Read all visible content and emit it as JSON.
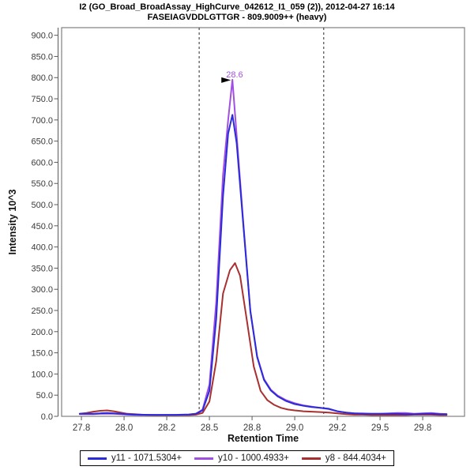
{
  "chart_data": {
    "type": "line",
    "title": "I2 (GO_Broad_BroadAssay_HighCurve_042612_I1_059 (2)), 2012-04-27 16:14",
    "subtitle": "FASEIAGVDDLGTTGR - 809.9009++ (heavy)",
    "xlabel": "Retention Time",
    "ylabel": "Intensity 10^3",
    "xlim": [
      27.634,
      29.995
    ],
    "ylim": [
      0,
      918
    ],
    "grid": false,
    "legend_position": "bottom",
    "x_ticks": [
      {
        "value": 27.75,
        "label": "27.8"
      },
      {
        "value": 28.0,
        "label": "28.0"
      },
      {
        "value": 28.25,
        "label": "28.2"
      },
      {
        "value": 28.5,
        "label": "28.5"
      },
      {
        "value": 28.75,
        "label": "28.8"
      },
      {
        "value": 29.0,
        "label": "29.0"
      },
      {
        "value": 29.25,
        "label": "29.2"
      },
      {
        "value": 29.5,
        "label": "29.5"
      },
      {
        "value": 29.75,
        "label": "29.8"
      }
    ],
    "y_ticks": [
      {
        "value": 0,
        "label": "0.0"
      },
      {
        "value": 50,
        "label": "50.0"
      },
      {
        "value": 100,
        "label": "100.0"
      },
      {
        "value": 150,
        "label": "150.0"
      },
      {
        "value": 200,
        "label": "200.0"
      },
      {
        "value": 250,
        "label": "250.0"
      },
      {
        "value": 300,
        "label": "300.0"
      },
      {
        "value": 350,
        "label": "350.0"
      },
      {
        "value": 400,
        "label": "400.0"
      },
      {
        "value": 450,
        "label": "450.0"
      },
      {
        "value": 500,
        "label": "500.0"
      },
      {
        "value": 550,
        "label": "550.0"
      },
      {
        "value": 600,
        "label": "600.0"
      },
      {
        "value": 650,
        "label": "650.0"
      },
      {
        "value": 700,
        "label": "700.0"
      },
      {
        "value": 750,
        "label": "750.0"
      },
      {
        "value": 800,
        "label": "800.0"
      },
      {
        "value": 850,
        "label": "850.0"
      },
      {
        "value": 900,
        "label": "900.0"
      }
    ],
    "integration_boundaries": [
      28.44,
      29.17
    ],
    "boundary_style": "dashed",
    "peak_annotation": {
      "text": "28.6",
      "rt": 28.635,
      "intensity": 795
    },
    "series": [
      {
        "name": "y11 - 1071.5304+",
        "color": "#2b2bd9",
        "points": [
          [
            27.74,
            6
          ],
          [
            27.78,
            6
          ],
          [
            27.82,
            6
          ],
          [
            27.86,
            7
          ],
          [
            27.9,
            8
          ],
          [
            27.94,
            7
          ],
          [
            27.98,
            6
          ],
          [
            28.02,
            5
          ],
          [
            28.06,
            4
          ],
          [
            28.1,
            4
          ],
          [
            28.14,
            3.5
          ],
          [
            28.18,
            3.5
          ],
          [
            28.22,
            3.5
          ],
          [
            28.26,
            3.5
          ],
          [
            28.3,
            3.5
          ],
          [
            28.34,
            4
          ],
          [
            28.38,
            4.5
          ],
          [
            28.42,
            6
          ],
          [
            28.46,
            14
          ],
          [
            28.5,
            60
          ],
          [
            28.54,
            230
          ],
          [
            28.58,
            520
          ],
          [
            28.61,
            668
          ],
          [
            28.635,
            712
          ],
          [
            28.66,
            645
          ],
          [
            28.7,
            445
          ],
          [
            28.74,
            248
          ],
          [
            28.78,
            140
          ],
          [
            28.82,
            86
          ],
          [
            28.86,
            61
          ],
          [
            28.9,
            47
          ],
          [
            28.95,
            36
          ],
          [
            29.0,
            29
          ],
          [
            29.05,
            25
          ],
          [
            29.1,
            22
          ],
          [
            29.15,
            20
          ],
          [
            29.2,
            18
          ],
          [
            29.25,
            12
          ],
          [
            29.3,
            9
          ],
          [
            29.35,
            7
          ],
          [
            29.4,
            6
          ],
          [
            29.45,
            6
          ],
          [
            29.5,
            6
          ],
          [
            29.55,
            6
          ],
          [
            29.6,
            6
          ],
          [
            29.65,
            5
          ],
          [
            29.7,
            5
          ],
          [
            29.75,
            6
          ],
          [
            29.8,
            6
          ],
          [
            29.85,
            5
          ],
          [
            29.89,
            5
          ]
        ]
      },
      {
        "name": "y10 - 1000.4933+",
        "color": "#a14fe0",
        "points": [
          [
            27.74,
            5
          ],
          [
            27.78,
            5
          ],
          [
            27.82,
            5
          ],
          [
            27.86,
            6
          ],
          [
            27.9,
            6
          ],
          [
            27.94,
            6
          ],
          [
            27.98,
            5
          ],
          [
            28.02,
            4
          ],
          [
            28.06,
            3.5
          ],
          [
            28.1,
            3
          ],
          [
            28.14,
            3
          ],
          [
            28.18,
            3
          ],
          [
            28.22,
            3
          ],
          [
            28.26,
            3
          ],
          [
            28.3,
            3
          ],
          [
            28.34,
            3.5
          ],
          [
            28.38,
            4
          ],
          [
            28.42,
            6
          ],
          [
            28.46,
            16
          ],
          [
            28.5,
            75
          ],
          [
            28.54,
            270
          ],
          [
            28.58,
            570
          ],
          [
            28.61,
            700
          ],
          [
            28.635,
            795
          ],
          [
            28.655,
            690
          ],
          [
            28.7,
            450
          ],
          [
            28.74,
            250
          ],
          [
            28.78,
            142
          ],
          [
            28.82,
            88
          ],
          [
            28.86,
            63
          ],
          [
            28.9,
            49
          ],
          [
            28.95,
            38
          ],
          [
            29.0,
            31
          ],
          [
            29.05,
            26
          ],
          [
            29.1,
            23
          ],
          [
            29.15,
            20
          ],
          [
            29.2,
            17
          ],
          [
            29.25,
            12
          ],
          [
            29.3,
            9
          ],
          [
            29.35,
            7
          ],
          [
            29.4,
            7
          ],
          [
            29.45,
            6
          ],
          [
            29.5,
            6
          ],
          [
            29.55,
            7
          ],
          [
            29.6,
            8
          ],
          [
            29.65,
            8
          ],
          [
            29.7,
            6
          ],
          [
            29.75,
            7
          ],
          [
            29.8,
            8
          ],
          [
            29.85,
            6
          ],
          [
            29.89,
            5
          ]
        ]
      },
      {
        "name": "y8 - 844.4034+",
        "color": "#a93030",
        "points": [
          [
            27.74,
            6
          ],
          [
            27.78,
            8
          ],
          [
            27.82,
            11
          ],
          [
            27.86,
            13
          ],
          [
            27.9,
            14
          ],
          [
            27.94,
            12
          ],
          [
            27.98,
            9
          ],
          [
            28.02,
            6
          ],
          [
            28.06,
            5
          ],
          [
            28.1,
            4
          ],
          [
            28.14,
            3.5
          ],
          [
            28.18,
            3
          ],
          [
            28.22,
            3
          ],
          [
            28.26,
            3
          ],
          [
            28.3,
            3
          ],
          [
            28.34,
            3
          ],
          [
            28.38,
            3
          ],
          [
            28.42,
            4
          ],
          [
            28.46,
            8
          ],
          [
            28.5,
            35
          ],
          [
            28.54,
            130
          ],
          [
            28.58,
            290
          ],
          [
            28.62,
            345
          ],
          [
            28.65,
            362
          ],
          [
            28.68,
            332
          ],
          [
            28.72,
            225
          ],
          [
            28.76,
            118
          ],
          [
            28.8,
            60
          ],
          [
            28.84,
            38
          ],
          [
            28.88,
            27
          ],
          [
            28.92,
            20
          ],
          [
            28.96,
            16
          ],
          [
            29.0,
            14
          ],
          [
            29.05,
            12
          ],
          [
            29.1,
            11
          ],
          [
            29.15,
            10
          ],
          [
            29.2,
            9
          ],
          [
            29.25,
            7
          ],
          [
            29.3,
            5
          ],
          [
            29.35,
            4
          ],
          [
            29.4,
            4
          ],
          [
            29.45,
            3
          ],
          [
            29.5,
            3
          ],
          [
            29.55,
            3
          ],
          [
            29.6,
            3
          ],
          [
            29.65,
            3
          ],
          [
            29.7,
            4
          ],
          [
            29.75,
            4
          ],
          [
            29.8,
            4
          ],
          [
            29.85,
            3
          ],
          [
            29.89,
            3
          ]
        ]
      }
    ]
  },
  "colors": {
    "plot_border": "#808080",
    "axis_line": "#5a5a5a",
    "tick_text": "#3a3a3a",
    "axis_title_text": "#111111",
    "boundary_line": "#2a2a2a",
    "annotation_arrow": "#000000"
  }
}
